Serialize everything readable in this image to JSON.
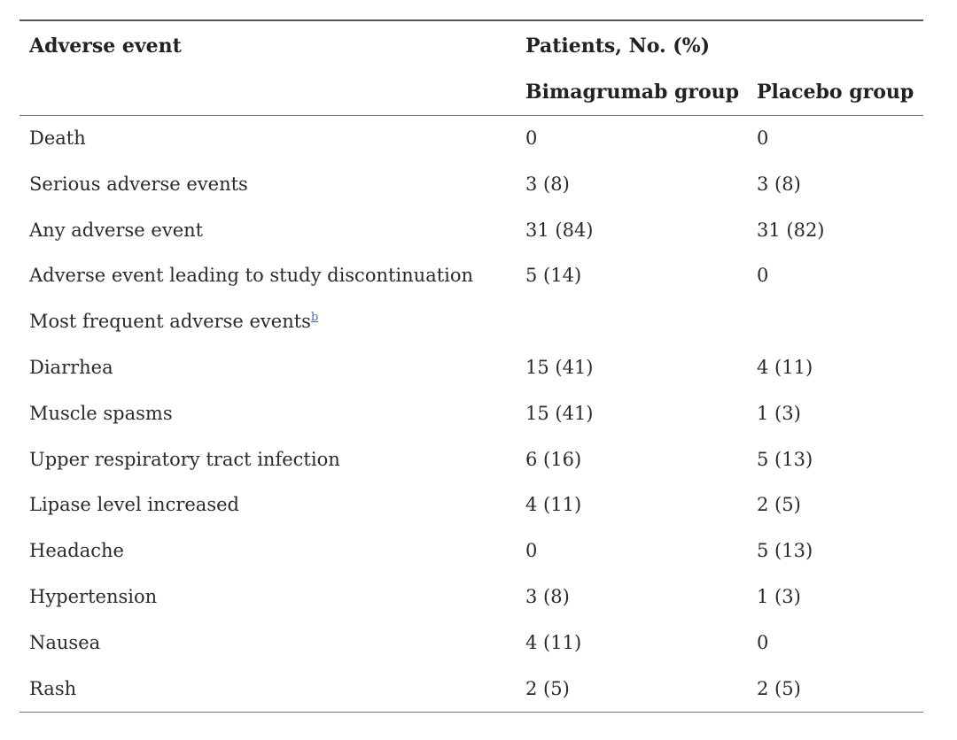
{
  "table": {
    "headers": {
      "event": "Adverse event",
      "patients": "Patients, No. (%)",
      "bimagrumab": "Bimagrumab group",
      "placebo": "Placebo group"
    },
    "rows": [
      {
        "event": "Death",
        "bimagrumab": "0",
        "placebo": "0"
      },
      {
        "event": "Serious adverse events",
        "bimagrumab": "3 (8)",
        "placebo": "3 (8)"
      },
      {
        "event": "Any adverse event",
        "bimagrumab": "31 (84)",
        "placebo": "31 (82)"
      },
      {
        "event": "Adverse event leading to study discontinuation",
        "bimagrumab": "5 (14)",
        "placebo": "0"
      },
      {
        "event": "Most frequent adverse events",
        "footnote": "b",
        "bimagrumab": "",
        "placebo": ""
      },
      {
        "event": "Diarrhea",
        "bimagrumab": "15 (41)",
        "placebo": "4 (11)"
      },
      {
        "event": "Muscle spasms",
        "bimagrumab": "15 (41)",
        "placebo": "1 (3)"
      },
      {
        "event": "Upper respiratory tract infection",
        "bimagrumab": "6 (16)",
        "placebo": "5 (13)"
      },
      {
        "event": "Lipase level increased",
        "bimagrumab": "4 (11)",
        "placebo": "2 (5)"
      },
      {
        "event": "Headache",
        "bimagrumab": "0",
        "placebo": "5 (13)"
      },
      {
        "event": "Hypertension",
        "bimagrumab": "3 (8)",
        "placebo": "1 (3)"
      },
      {
        "event": "Nausea",
        "bimagrumab": "4 (11)",
        "placebo": "0"
      },
      {
        "event": "Rash",
        "bimagrumab": "2 (5)",
        "placebo": "2 (5)"
      }
    ]
  }
}
